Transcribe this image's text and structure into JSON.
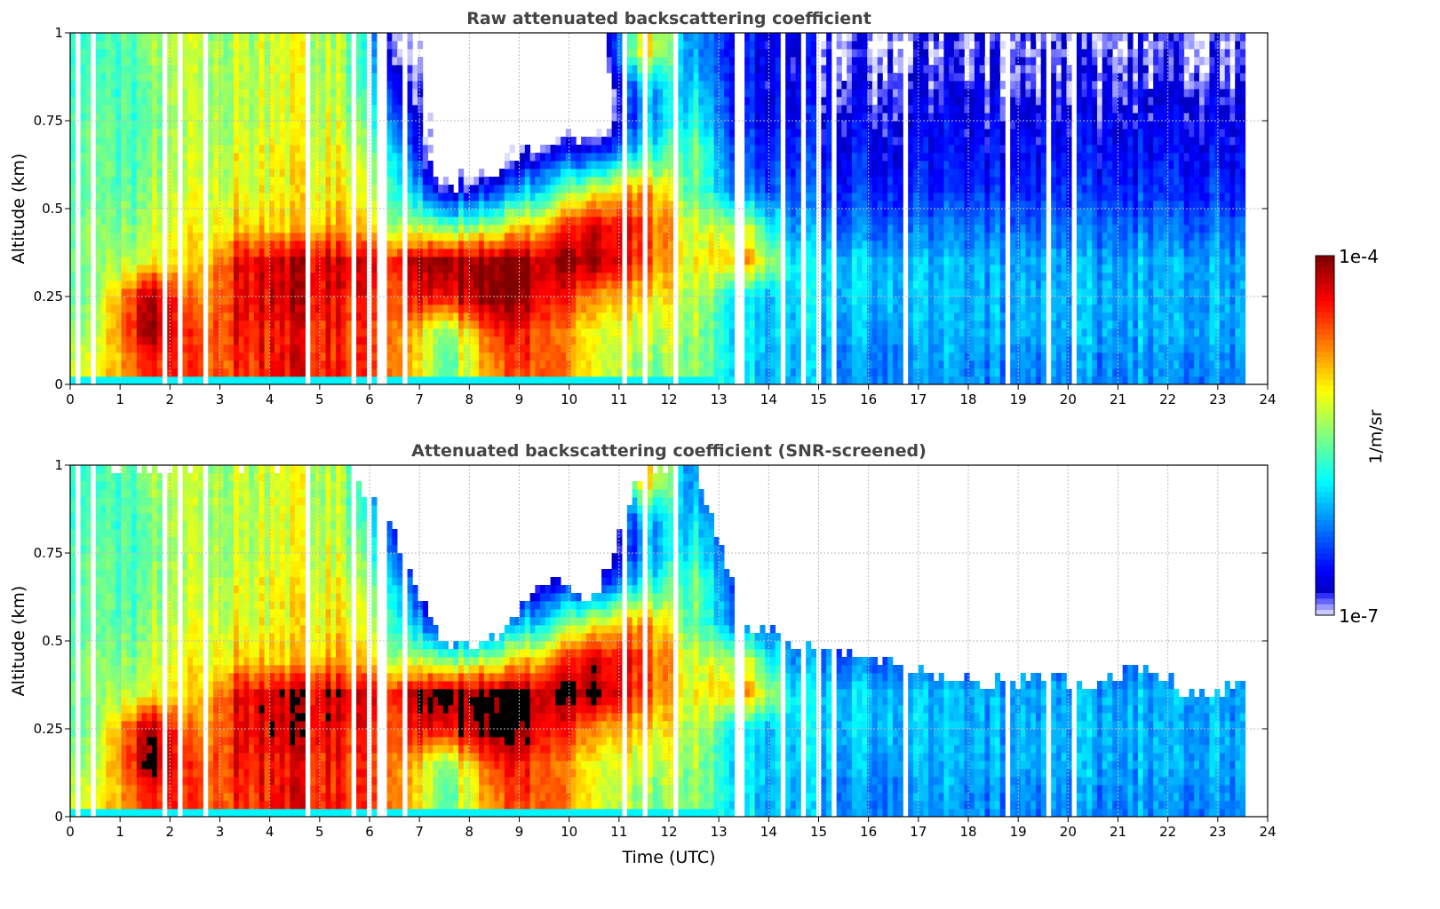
{
  "chart_data": [
    {
      "type": "heatmap",
      "title": "Raw attenuated backscattering coefficient",
      "xlabel": "",
      "ylabel": "Altitude (km)",
      "xlim": [
        0,
        24
      ],
      "ylim": [
        0,
        1
      ],
      "xticks": [
        "0",
        "1",
        "2",
        "3",
        "4",
        "5",
        "6",
        "7",
        "8",
        "9",
        "10",
        "11",
        "12",
        "13",
        "14",
        "15",
        "16",
        "17",
        "18",
        "19",
        "20",
        "21",
        "22",
        "23",
        "24"
      ],
      "yticks": [
        "0",
        "0.25",
        "0.5",
        "0.75",
        "1"
      ],
      "grid": true,
      "data_end_hour": 23.55,
      "time_centers_hour": [
        0.5,
        1.5,
        2.5,
        3.5,
        4.5,
        5.5,
        6.5,
        7.5,
        8.5,
        9.5,
        10.5,
        11.5,
        12.5,
        13.5,
        14.5,
        15.5,
        16.5,
        17.5,
        18.5,
        19.5,
        20.5,
        21.5,
        22.5,
        23.5
      ],
      "altitude_centers_km": [
        0.05,
        0.15,
        0.25,
        0.35,
        0.45,
        0.55,
        0.65,
        0.75,
        0.85,
        0.95
      ],
      "log10_beta": [
        [
          -5.2,
          -5.4,
          -5.5,
          -5.5,
          -5.5,
          -5.6,
          -5.6,
          -5.6,
          -5.7,
          -5.7
        ],
        [
          -4.5,
          -4.1,
          -4.1,
          -5.2,
          -5.4,
          -5.5,
          -5.6,
          -5.6,
          -5.6,
          -5.5
        ],
        [
          -4.5,
          -4.6,
          -4.8,
          -5.0,
          -5.1,
          -5.2,
          -5.3,
          -5.3,
          -5.3,
          -5.3
        ],
        [
          -4.5,
          -4.4,
          -4.3,
          -4.3,
          -5.0,
          -5.2,
          -5.2,
          -5.3,
          -5.3,
          -5.3
        ],
        [
          -4.3,
          -4.4,
          -4.2,
          -4.2,
          -5.0,
          -5.1,
          -5.1,
          -5.2,
          -5.2,
          -5.2
        ],
        [
          -4.5,
          -4.5,
          -4.4,
          -4.3,
          -4.9,
          -5.1,
          -5.2,
          -5.3,
          -5.4,
          -5.4
        ],
        [
          -4.6,
          -4.6,
          -4.5,
          -4.3,
          -5.3,
          -5.6,
          -5.8,
          -6.2,
          -6.5,
          -6.8
        ],
        [
          -5.6,
          -5.5,
          -4.3,
          -4.0,
          -5.5,
          -6.8,
          -7.5,
          -7.5,
          -7.5,
          -7.5
        ],
        [
          -4.8,
          -4.5,
          -4.0,
          -4.1,
          -5.4,
          -6.5,
          -7.5,
          -7.5,
          -7.5,
          -7.5
        ],
        [
          -4.5,
          -4.5,
          -4.2,
          -4.1,
          -4.8,
          -5.8,
          -6.5,
          -7.5,
          -7.5,
          -7.5
        ],
        [
          -5.2,
          -5.2,
          -4.8,
          -4.1,
          -4.3,
          -5.2,
          -6.5,
          -7.5,
          -7.5,
          -7.5
        ],
        [
          -5.5,
          -5.3,
          -5.0,
          -4.6,
          -4.5,
          -4.8,
          -5.8,
          -6.2,
          -6.0,
          -5.0
        ],
        [
          -5.4,
          -5.4,
          -5.3,
          -5.2,
          -5.3,
          -5.6,
          -5.5,
          -5.8,
          -6.0,
          -6.2
        ],
        [
          -6.0,
          -6.0,
          -6.0,
          -4.8,
          -5.3,
          -6.3,
          -6.5,
          -6.6,
          -6.6,
          -6.6
        ],
        [
          -6.1,
          -6.0,
          -6.0,
          -5.9,
          -6.2,
          -6.4,
          -6.5,
          -6.6,
          -6.7,
          -6.7
        ],
        [
          -6.2,
          -6.1,
          -6.0,
          -6.0,
          -6.3,
          -6.5,
          -6.6,
          -6.7,
          -6.8,
          -6.9
        ],
        [
          -6.2,
          -6.1,
          -6.0,
          -6.0,
          -6.3,
          -6.5,
          -6.6,
          -6.7,
          -6.8,
          -6.9
        ],
        [
          -6.2,
          -6.1,
          -6.1,
          -6.1,
          -6.3,
          -6.5,
          -6.6,
          -6.7,
          -6.8,
          -6.9
        ],
        [
          -6.2,
          -6.1,
          -6.1,
          -6.1,
          -6.3,
          -6.5,
          -6.6,
          -6.7,
          -6.8,
          -6.9
        ],
        [
          -6.2,
          -6.1,
          -6.1,
          -6.1,
          -6.3,
          -6.5,
          -6.6,
          -6.7,
          -6.8,
          -6.9
        ],
        [
          -6.2,
          -6.1,
          -6.1,
          -6.1,
          -6.3,
          -6.5,
          -6.6,
          -6.7,
          -6.8,
          -6.9
        ],
        [
          -6.2,
          -6.1,
          -6.1,
          -6.1,
          -6.3,
          -6.5,
          -6.6,
          -6.7,
          -6.8,
          -6.9
        ],
        [
          -6.2,
          -6.1,
          -6.1,
          -6.1,
          -6.3,
          -6.5,
          -6.6,
          -6.7,
          -6.8,
          -6.9
        ],
        [
          -6.2,
          -6.1,
          -6.1,
          -6.1,
          -6.3,
          -6.5,
          -6.6,
          -6.7,
          -6.8,
          -6.9
        ]
      ]
    },
    {
      "type": "heatmap",
      "title": "Attenuated backscattering coefficient (SNR-screened)",
      "xlabel": "Time (UTC)",
      "ylabel": "Altitude (km)",
      "xlim": [
        0,
        24
      ],
      "ylim": [
        0,
        1
      ],
      "xticks": [
        "0",
        "1",
        "2",
        "3",
        "4",
        "5",
        "6",
        "7",
        "8",
        "9",
        "10",
        "11",
        "12",
        "13",
        "14",
        "15",
        "16",
        "17",
        "18",
        "19",
        "20",
        "21",
        "22",
        "23",
        "24"
      ],
      "yticks": [
        "0",
        "0.25",
        "0.5",
        "0.75",
        "1"
      ],
      "grid": true,
      "source": "same field as raw panel, masked by SNR",
      "screen_top_km": [
        1,
        1,
        1,
        1,
        1,
        1,
        0.8,
        0.48,
        0.5,
        0.7,
        0.62,
        1,
        1,
        0.55,
        0.5,
        0.47,
        0.43,
        0.4,
        0.38,
        0.4,
        0.38,
        0.42,
        0.35,
        0.38
      ],
      "saturated_log10_threshold": -4.1,
      "saturated_color": "#000000"
    }
  ],
  "colorbar": {
    "label": "1/m/sr",
    "max_label": "1e-4",
    "min_label": "1e-7",
    "log10_range": [
      -7,
      -4
    ],
    "colormap": "jet"
  }
}
